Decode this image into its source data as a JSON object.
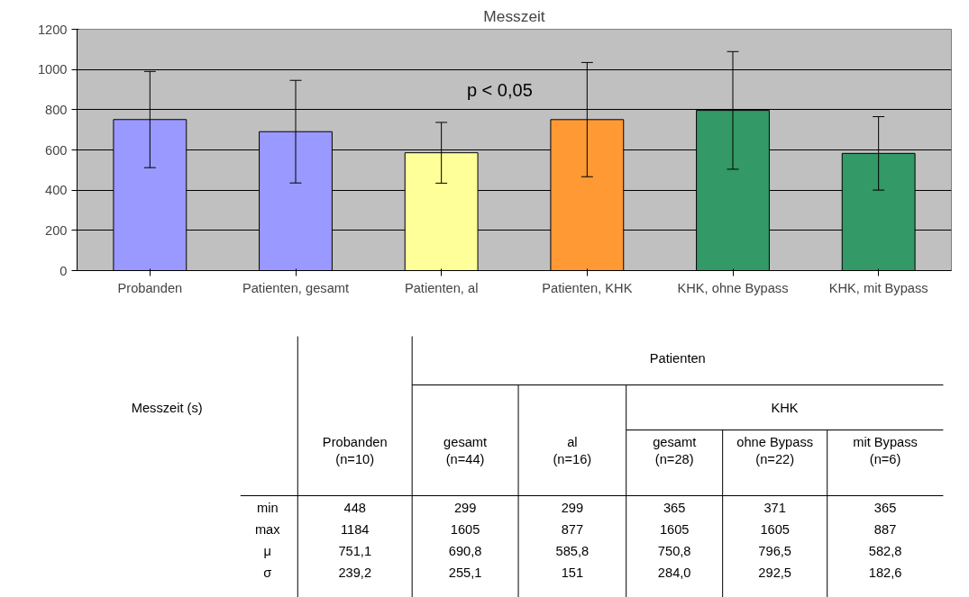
{
  "chart_data": {
    "type": "bar",
    "title": "Messzeit",
    "categories": [
      "Probanden",
      "Patienten, gesamt",
      "Patienten, al",
      "Patienten, KHK",
      "KHK, ohne Bypass",
      "KHK, mit Bypass"
    ],
    "values": [
      751.1,
      690.8,
      585.8,
      750.8,
      796.5,
      582.8
    ],
    "errors": [
      239.2,
      255.1,
      151,
      284.0,
      292.5,
      182.6
    ],
    "colors": [
      "#9999ff",
      "#9999ff",
      "#ffff99",
      "#ff9933",
      "#339966",
      "#339966"
    ],
    "ylim": [
      0,
      1200
    ],
    "yticks": [
      0,
      200,
      400,
      600,
      800,
      1000,
      1200
    ],
    "grid": "y",
    "annotations": [
      "p < 0,05",
      "Messzeit (s)",
      "Patienten",
      "KHK",
      "Probanden\n(n=10)",
      "gesamt\n(n=44)",
      "al\n(n=16)",
      "gesamt\n(n=28)",
      "ohne Bypass\n(n=22)",
      "mit Bypass\n(n=6)",
      "min",
      "max",
      "μ",
      "σ",
      "448",
      "299",
      "299",
      "365",
      "371",
      "365",
      "1184",
      "1605",
      "877",
      "1605",
      "1605",
      "887",
      "751,1",
      "690,8",
      "585,8",
      "750,8",
      "796,5",
      "582,8",
      "239,2",
      "255,1",
      "151",
      "284,0",
      "292,5",
      "182,6"
    ]
  }
}
